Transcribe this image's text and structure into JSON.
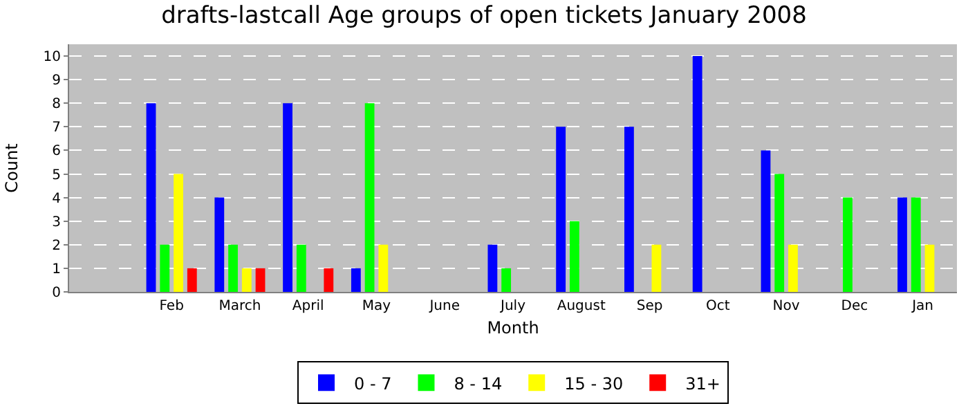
{
  "chart_data": {
    "type": "bar",
    "title": "drafts-lastcall Age groups of open tickets January 2008",
    "xlabel": "Month",
    "ylabel": "Count",
    "categories": [
      null,
      "Feb",
      "March",
      "April",
      "May",
      "June",
      "July",
      "August",
      "Sep",
      "Oct",
      "Nov",
      "Dec",
      "Jan"
    ],
    "series": [
      {
        "name": "0 - 7",
        "color": "#0000ff",
        "values": [
          null,
          8,
          4,
          8,
          1,
          0,
          2,
          7,
          7,
          10,
          6,
          0,
          4
        ]
      },
      {
        "name": "8 - 14",
        "color": "#00ff00",
        "values": [
          null,
          2,
          2,
          2,
          8,
          0,
          1,
          3,
          0,
          0,
          5,
          4,
          4
        ]
      },
      {
        "name": "15 - 30",
        "color": "#ffff00",
        "values": [
          null,
          5,
          1,
          0,
          2,
          0,
          0,
          0,
          2,
          0,
          2,
          0,
          2
        ]
      },
      {
        "name": "31+",
        "color": "#ff0000",
        "values": [
          null,
          1,
          1,
          1,
          0,
          0,
          0,
          0,
          0,
          0,
          0,
          0,
          0
        ]
      }
    ],
    "ylim": [
      0,
      10.5
    ],
    "yticks": [
      0,
      1,
      2,
      3,
      4,
      5,
      6,
      7,
      8,
      9,
      10
    ],
    "grid": "y",
    "legend": "bottom"
  }
}
